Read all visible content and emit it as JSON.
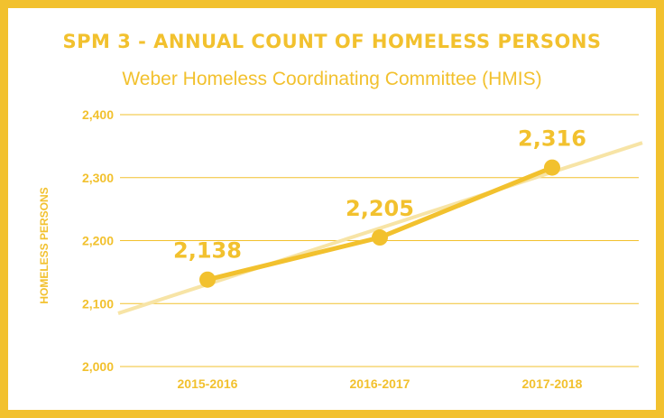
{
  "colors": {
    "accent": "#f2c12e",
    "trend": "#f7e4a6",
    "background": "#ffffff"
  },
  "chart_data": {
    "type": "line",
    "title": "SPM 3 - ANNUAL COUNT OF HOMELESS PERSONS",
    "subtitle": "Weber Homeless Coordinating Committee (HMIS)",
    "ylabel": "HOMELESS PERSONS",
    "xlabel": "",
    "categories": [
      "2015-2016",
      "2016-2017",
      "2017-2018"
    ],
    "series": [
      {
        "values": [
          2138,
          2205,
          2316
        ],
        "data_labels": [
          "2,138",
          "2,205",
          "2,316"
        ]
      }
    ],
    "trendline": true,
    "ylim": [
      2000,
      2400
    ],
    "yticks": [
      2000,
      2100,
      2200,
      2300,
      2400
    ],
    "ytick_labels": [
      "2,000",
      "2,100",
      "2,200",
      "2,300",
      "2,400"
    ],
    "grid": "horizontal",
    "legend": "none"
  }
}
